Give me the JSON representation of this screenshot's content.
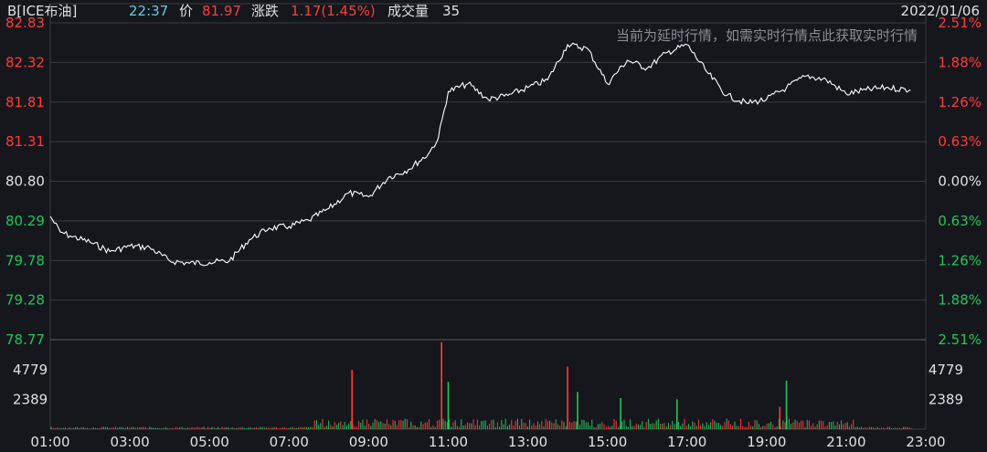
{
  "header": {
    "symbol": "B[ICE布油]",
    "time": "22:37",
    "price_label": "价",
    "price": "81.97",
    "change_label": "涨跌",
    "change": "1.17(1.45%)",
    "volume_label": "成交量",
    "volume": "35",
    "date": "2022/01/06"
  },
  "notice": "当前为延时行情，如需实时行情点此获取实时行情",
  "colors": {
    "up": "#ff3b3b",
    "down": "#22c55e",
    "neutral": "#e0e0e0",
    "time": "#56d0ea",
    "grid": "#3a3b42",
    "line": "#ffffff"
  },
  "chart_data": {
    "type": "line",
    "x_ticks": [
      "01:00",
      "03:00",
      "05:00",
      "07:00",
      "09:00",
      "11:00",
      "13:00",
      "15:00",
      "17:00",
      "19:00",
      "21:00",
      "23:00"
    ],
    "price_ticks": [
      "82.83",
      "82.32",
      "81.81",
      "81.31",
      "80.80",
      "80.29",
      "79.78",
      "79.28",
      "78.77"
    ],
    "pct_ticks": [
      "2.51%",
      "1.88%",
      "1.26%",
      "0.63%",
      "0.00%",
      "0.63%",
      "1.26%",
      "1.88%",
      "2.51%"
    ],
    "ylim": [
      78.77,
      82.83
    ],
    "base_price": 80.8,
    "series": [
      {
        "x": [
          "01:00",
          "01:15",
          "01:30",
          "02:00",
          "02:30",
          "03:00",
          "03:30",
          "04:00",
          "04:30",
          "05:00",
          "05:30",
          "06:00",
          "06:30",
          "07:00",
          "07:30",
          "08:00",
          "08:30",
          "09:00",
          "09:30",
          "10:00",
          "10:30",
          "10:45",
          "11:00",
          "11:30",
          "12:00",
          "12:30",
          "13:00",
          "13:30",
          "14:00",
          "14:30",
          "15:00",
          "15:30",
          "16:00",
          "16:30",
          "17:00",
          "17:30",
          "18:00",
          "18:30",
          "19:00",
          "19:30",
          "20:00",
          "20:30",
          "21:00",
          "21:30",
          "22:00",
          "22:37"
        ],
        "y": [
          80.35,
          80.15,
          80.1,
          80.02,
          79.9,
          79.97,
          79.95,
          79.78,
          79.75,
          79.76,
          79.78,
          80.05,
          80.2,
          80.22,
          80.3,
          80.45,
          80.65,
          80.6,
          80.85,
          80.95,
          81.15,
          81.35,
          81.95,
          82.05,
          81.85,
          81.9,
          82.0,
          82.1,
          82.55,
          82.5,
          82.05,
          82.35,
          82.25,
          82.45,
          82.55,
          82.2,
          81.9,
          81.8,
          81.85,
          82.0,
          82.15,
          82.1,
          81.92,
          81.97,
          82.0,
          81.97
        ]
      }
    ],
    "volume": {
      "ticks": [
        "4779",
        "2389"
      ],
      "ylim": [
        0,
        7200
      ],
      "peaks": [
        {
          "time": "08:35",
          "value": 4779,
          "dir": "up"
        },
        {
          "time": "10:50",
          "value": 7000,
          "dir": "up"
        },
        {
          "time": "11:00",
          "value": 3800,
          "dir": "down"
        },
        {
          "time": "14:00",
          "value": 5050,
          "dir": "up"
        },
        {
          "time": "14:15",
          "value": 3000,
          "dir": "down"
        },
        {
          "time": "15:20",
          "value": 2500,
          "dir": "down"
        },
        {
          "time": "16:45",
          "value": 2400,
          "dir": "down"
        },
        {
          "time": "19:30",
          "value": 3900,
          "dir": "down"
        },
        {
          "time": "19:20",
          "value": 1800,
          "dir": "up"
        }
      ]
    }
  }
}
